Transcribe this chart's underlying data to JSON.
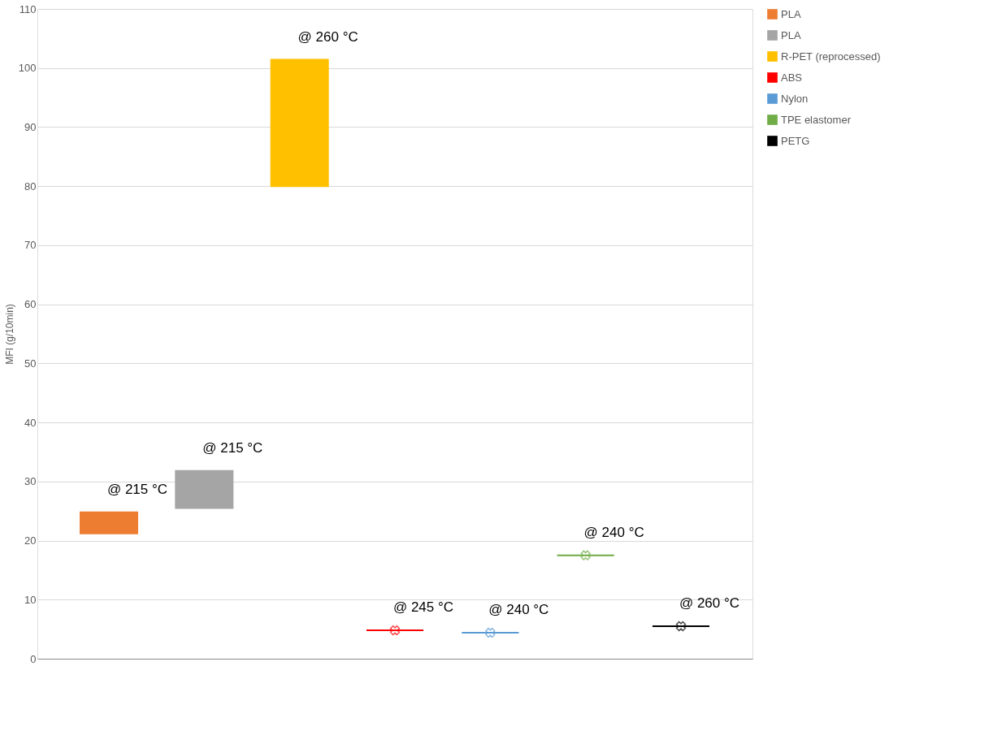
{
  "chart_data": {
    "type": "box",
    "ylabel": "MFI (g/10min)",
    "categories": [
      null
    ],
    "ylim": [
      0,
      110
    ],
    "yticks": [
      0,
      10,
      20,
      30,
      40,
      50,
      60,
      70,
      80,
      90,
      100,
      110
    ],
    "grid": "y",
    "legend": "right",
    "marker": "cross",
    "series": [
      {
        "name": "PLA",
        "color": "#ed7d31",
        "boxes": [
          {
            "low": 21.2,
            "q1": 21.2,
            "median": 23,
            "q3": 24.8,
            "high": 24.8,
            "mean": 23
          }
        ]
      },
      {
        "name": "PLA",
        "color": "#a5a5a5",
        "boxes": [
          {
            "low": 25.5,
            "q1": 25.5,
            "median": 28.7,
            "q3": 31.8,
            "high": 31.8,
            "mean": 28.7
          }
        ]
      },
      {
        "name": "R-PET (reprocessed)",
        "color": "#ffc000",
        "boxes": [
          {
            "low": 80,
            "q1": 80,
            "median": 90.7,
            "q3": 101.4,
            "high": 101.4,
            "mean": 90.7
          }
        ]
      },
      {
        "name": "ABS",
        "color": "#ff0000",
        "boxes": [
          {
            "low": 4.8,
            "q1": 4.8,
            "median": 4.8,
            "q3": 4.8,
            "high": 4.8,
            "mean": 4.8
          }
        ]
      },
      {
        "name": "Nylon",
        "color": "#5b9bd5",
        "boxes": [
          {
            "low": 4.4,
            "q1": 4.4,
            "median": 4.4,
            "q3": 4.4,
            "high": 4.4,
            "mean": 4.4
          }
        ]
      },
      {
        "name": "TPE elastomer",
        "color": "#70ad47",
        "boxes": [
          {
            "low": 17.5,
            "q1": 17.5,
            "median": 17.5,
            "q3": 17.5,
            "high": 17.5,
            "mean": 17.5
          }
        ]
      },
      {
        "name": "PETG",
        "color": "#000000",
        "boxes": [
          {
            "low": 5.5,
            "q1": 5.5,
            "median": 5.5,
            "q3": 5.5,
            "high": 5.5,
            "mean": 5.5
          }
        ]
      }
    ],
    "annotations": [
      "@ 215 °C",
      "@ 215 °C",
      "@ 260 °C",
      "@ 245 °C",
      "@ 240 °C",
      "@ 240 °C",
      "@ 260 °C"
    ]
  }
}
